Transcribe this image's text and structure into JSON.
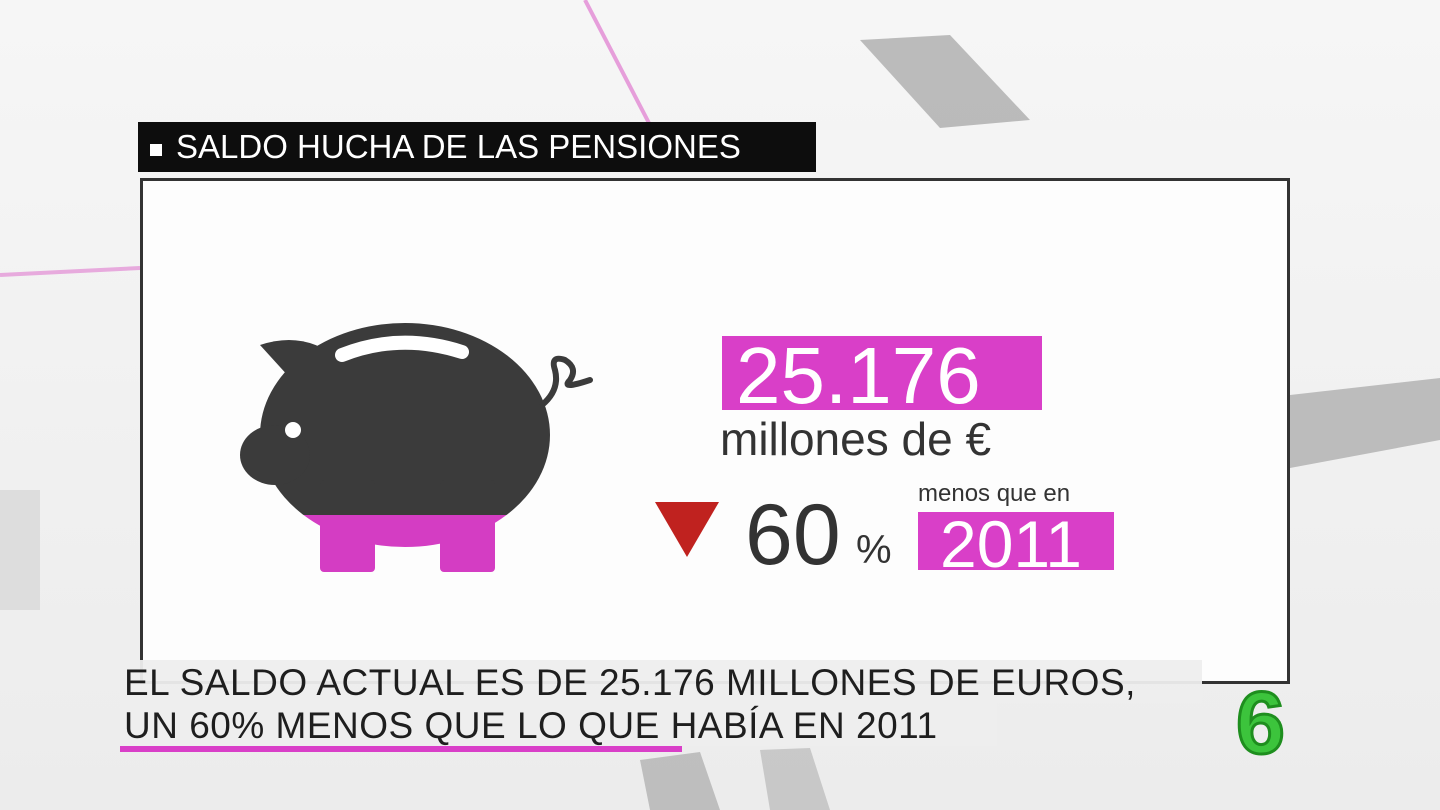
{
  "header": {
    "title": "SALDO HUCHA DE LAS PENSIONES"
  },
  "figure": {
    "amount": "25.176",
    "unit": "millones de €",
    "change": "60",
    "change_unit": "%",
    "comparison": "menos que en",
    "year": "2011"
  },
  "caption": {
    "lines": [
      "EL SALDO ACTUAL ES DE 25.176 MILLONES DE EUROS,",
      "UN 60% MENOS QUE LO QUE HABÍA EN 2011"
    ]
  },
  "logo": {
    "text": "6"
  }
}
